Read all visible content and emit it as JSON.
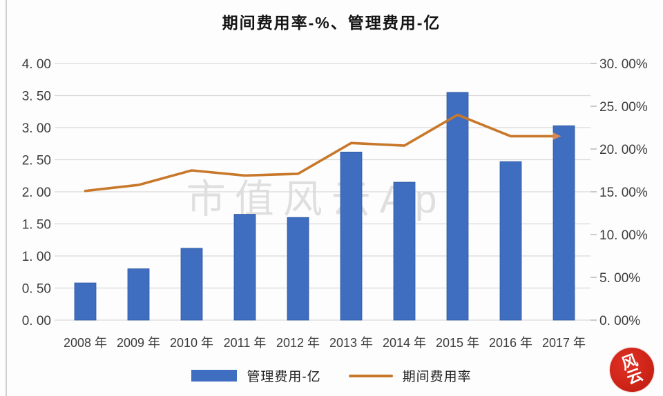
{
  "title": "期间费用率-%、管理费用-亿",
  "watermark": "市值风云App",
  "seal": {
    "char1": "风",
    "char2": "云"
  },
  "legend": [
    {
      "label": "管理费用-亿",
      "type": "bar",
      "color": "#3f6dbf"
    },
    {
      "label": "期间费用率",
      "type": "line",
      "color": "#c8782b"
    }
  ],
  "chart_data": {
    "type": "combo",
    "title": "期间费用率-%、管理费用-亿",
    "categories": [
      "2008 年",
      "2009 年",
      "2010 年",
      "2011 年",
      "2012 年",
      "2013 年",
      "2014 年",
      "2015 年",
      "2016 年",
      "2017 年"
    ],
    "series": [
      {
        "name": "管理费用-亿",
        "type": "bar",
        "axis": "left",
        "color": "#3f6dbf",
        "values": [
          0.58,
          0.8,
          1.12,
          1.65,
          1.6,
          2.62,
          2.15,
          3.55,
          2.47,
          3.03
        ]
      },
      {
        "name": "期间费用率",
        "type": "line",
        "axis": "right",
        "color": "#c8782b",
        "arrow_end": true,
        "arrow_color": "#d5875a",
        "values": [
          15.1,
          15.8,
          17.5,
          16.9,
          17.1,
          20.7,
          20.4,
          24.0,
          21.5,
          21.5
        ]
      }
    ],
    "left_axis": {
      "min": 0,
      "max": 4,
      "step": 0.5,
      "tick_labels_top_to_bottom": [
        "4. 00",
        "3. 50",
        "3. 00",
        "2. 50",
        "2. 00",
        "1. 50",
        "1. 00",
        "0. 50",
        "0. 00"
      ]
    },
    "right_axis": {
      "min": 0,
      "max": 30,
      "step": 5,
      "unit": "%",
      "tick_labels_top_to_bottom": [
        "30. 00%",
        "25. 00%",
        "20. 00%",
        "15. 00%",
        "10. 00%",
        "5. 00%",
        "0. 00%"
      ]
    },
    "grid": true,
    "grid_color": "#dadada",
    "legend_position": "bottom"
  }
}
